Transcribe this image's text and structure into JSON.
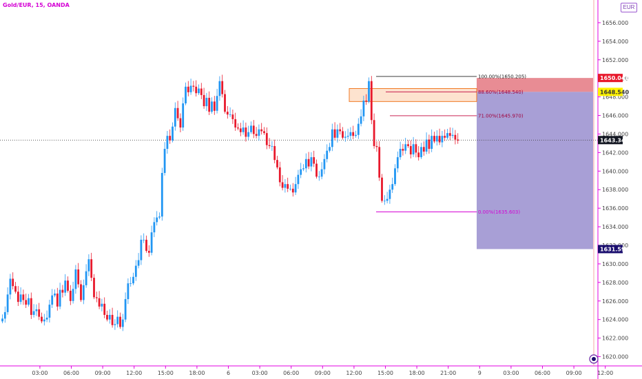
{
  "header": {
    "symbol": "Gold/EUR, 15, OANDA",
    "currency": "EUR"
  },
  "colors": {
    "up": "#2196f3",
    "down": "#e8192c",
    "axis": "#e000e0",
    "fib": "#a0003c",
    "fib_zero": "#d400d4"
  },
  "chart_data": {
    "type": "candlestick",
    "ylim": [
      1619,
      1658
    ],
    "y_ticks": [
      "1620.000",
      "1622.000",
      "1624.000",
      "1626.000",
      "1628.000",
      "1630.000",
      "1632.000",
      "1634.000",
      "1636.000",
      "1638.000",
      "1640.000",
      "1642.000",
      "1644.000",
      "1646.000",
      "1648.000",
      "1650.000",
      "1652.000",
      "1654.000",
      "1656.000"
    ],
    "x_ticks": [
      "03:00",
      "06:00",
      "09:00",
      "12:00",
      "15:00",
      "18:00",
      "6",
      "03:00",
      "06:00",
      "09:00",
      "12:00",
      "15:00",
      "18:00",
      "21:00",
      "9",
      "03:00",
      "06:00",
      "09:00",
      "12:00"
    ],
    "x_tick_index": [
      13,
      25,
      37,
      49,
      61,
      73,
      85,
      97,
      109,
      121,
      133,
      145,
      157,
      169,
      181,
      193,
      205,
      217,
      229
    ],
    "closes": [
      1624.1,
      1624.8,
      1626.7,
      1628.4,
      1627.6,
      1627.0,
      1625.9,
      1626.7,
      1626.1,
      1625.6,
      1626.3,
      1624.5,
      1624.9,
      1625.1,
      1624.3,
      1623.8,
      1624.0,
      1624.2,
      1625.6,
      1626.6,
      1626.8,
      1625.4,
      1627.2,
      1626.9,
      1628.2,
      1627.1,
      1626.0,
      1627.3,
      1629.4,
      1627.8,
      1626.1,
      1627.7,
      1629.2,
      1630.5,
      1628.5,
      1626.4,
      1626.3,
      1625.4,
      1625.7,
      1624.5,
      1624.0,
      1624.5,
      1623.4,
      1623.5,
      1624.3,
      1623.2,
      1624.0,
      1626.2,
      1627.9,
      1627.9,
      1628.6,
      1629.8,
      1630.4,
      1632.6,
      1632.6,
      1631.4,
      1631.2,
      1633.4,
      1634.5,
      1635.0,
      1635.1,
      1639.8,
      1642.4,
      1643.8,
      1643.3,
      1644.8,
      1646.8,
      1645.7,
      1644.7,
      1647.3,
      1649.1,
      1648.5,
      1649.2,
      1649.1,
      1648.4,
      1648.9,
      1648.2,
      1647.0,
      1647.9,
      1646.4,
      1647.5,
      1646.5,
      1648.1,
      1649.7,
      1648.3,
      1646.4,
      1646.1,
      1646.1,
      1645.6,
      1644.7,
      1644.6,
      1644.2,
      1644.7,
      1643.7,
      1644.2,
      1644.9,
      1644.0,
      1643.8,
      1644.5,
      1644.3,
      1644.1,
      1642.8,
      1642.7,
      1642.7,
      1641.2,
      1640.4,
      1638.8,
      1638.2,
      1638.6,
      1638.1,
      1638.1,
      1637.7,
      1638.6,
      1639.6,
      1640.2,
      1640.3,
      1641.3,
      1640.5,
      1641.5,
      1640.8,
      1639.4,
      1639.4,
      1640.2,
      1641.3,
      1642.2,
      1642.6,
      1644.5,
      1643.6,
      1644.5,
      1644.3,
      1643.6,
      1643.7,
      1643.8,
      1644.2,
      1643.8,
      1643.9,
      1645.1,
      1645.9,
      1647.6,
      1647.5,
      1649.7,
      1645.5,
      1642.7,
      1642.6,
      1639.3,
      1636.8,
      1636.8,
      1637.0,
      1638.0,
      1638.6,
      1640.3,
      1641.5,
      1642.4,
      1642.2,
      1642.9,
      1642.7,
      1641.8,
      1642.9,
      1642.0,
      1641.5,
      1642.6,
      1642.1,
      1643.4,
      1642.4,
      1643.8,
      1643.2,
      1643.8,
      1643.1,
      1643.8,
      1643.6,
      1644.1,
      1643.8,
      1643.9,
      1643.4,
      1643.3
    ],
    "fib_levels": [
      {
        "label": "100.00%(1650.205)",
        "price": 1650.205
      },
      {
        "label": "88.60%(1648.540)",
        "price": 1648.54
      },
      {
        "label": "71.00%(1645.970)",
        "price": 1645.97
      },
      {
        "label": "0.00%(1635.603)",
        "price": 1635.603
      }
    ],
    "price_labels": [
      {
        "text": "1650.041",
        "price": 1650.041,
        "bg": "#e8192c",
        "fg": "#ffffff"
      },
      {
        "text": "1648.540",
        "price": 1648.54,
        "bg": "#fff200",
        "fg": "#333333"
      },
      {
        "text": "1643.344",
        "price": 1643.344,
        "bg": "#131722",
        "fg": "#ffffff"
      },
      {
        "text": "1631.594",
        "price": 1631.594,
        "bg": "#1a0e6e",
        "fg": "#ffffff"
      }
    ],
    "position": {
      "entry": 1648.54,
      "stop": 1650.041,
      "target": 1631.594
    },
    "current_price": 1643.344
  }
}
